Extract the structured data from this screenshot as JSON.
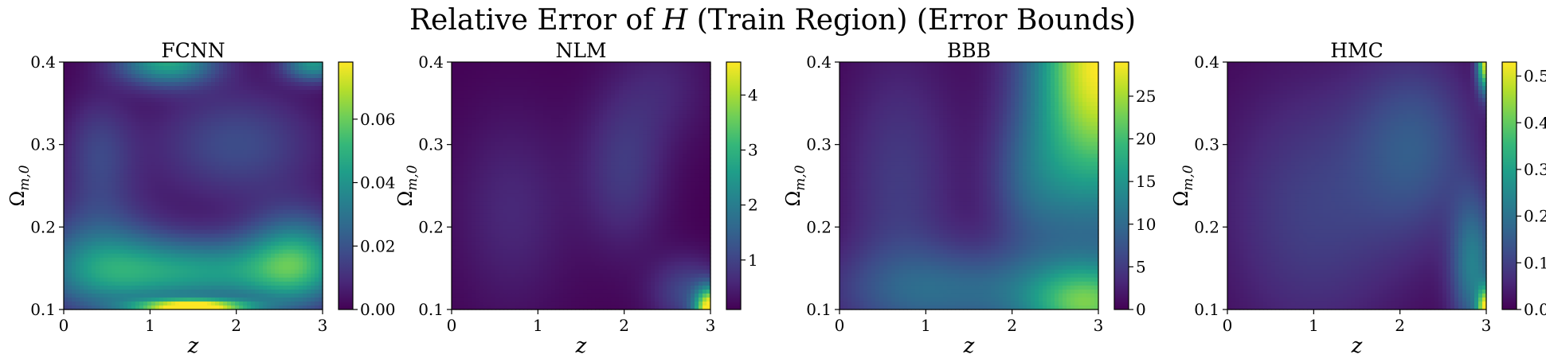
{
  "figure": {
    "title_prefix": "Relative Error of ",
    "title_symbol": "H",
    "title_suffix": " (Train Region) (Error Bounds)"
  },
  "chart_data": [
    {
      "type": "heatmap",
      "title": "FCNN",
      "xlabel": "z",
      "ylabel": "Ω",
      "ylabel_sub": "m,0",
      "xlim": [
        0,
        3
      ],
      "ylim": [
        0.1,
        0.4
      ],
      "xticks": [
        "0",
        "1",
        "2",
        "3"
      ],
      "yticks": [
        "0.1",
        "0.2",
        "0.3",
        "0.4"
      ],
      "colorbar": {
        "min": 0,
        "max": 0.078,
        "ticks": [
          "0.00",
          "0.02",
          "0.04",
          "0.06"
        ],
        "tick_values": [
          0,
          0.02,
          0.04,
          0.06
        ]
      },
      "colormap": "viridis",
      "features": [
        {
          "x": 1.5,
          "y": 0.103,
          "sx": 0.45,
          "sy": 0.006,
          "v": 0.078
        },
        {
          "x": 1.5,
          "y": 0.145,
          "sx": 1.0,
          "sy": 0.03,
          "v": 0.042
        },
        {
          "x": 2.7,
          "y": 0.16,
          "sx": 0.4,
          "sy": 0.04,
          "v": 0.04
        },
        {
          "x": 0.4,
          "y": 0.16,
          "sx": 0.5,
          "sy": 0.05,
          "v": 0.025
        },
        {
          "x": 1.2,
          "y": 0.4,
          "sx": 0.4,
          "sy": 0.02,
          "v": 0.045
        },
        {
          "x": 2.9,
          "y": 0.398,
          "sx": 0.25,
          "sy": 0.015,
          "v": 0.04
        },
        {
          "x": 2.0,
          "y": 0.3,
          "sx": 0.7,
          "sy": 0.05,
          "v": 0.018
        },
        {
          "x": 0.4,
          "y": 0.29,
          "sx": 0.3,
          "sy": 0.05,
          "v": 0.015
        }
      ]
    },
    {
      "type": "heatmap",
      "title": "NLM",
      "xlabel": "z",
      "ylabel": "Ω",
      "ylabel_sub": "m,0",
      "xlim": [
        0,
        3
      ],
      "ylim": [
        0.1,
        0.4
      ],
      "xticks": [
        "0",
        "1",
        "2",
        "3"
      ],
      "yticks": [
        "0.1",
        "0.2",
        "0.3",
        "0.4"
      ],
      "colorbar": {
        "min": 0.1,
        "max": 4.6,
        "ticks": [
          "1",
          "2",
          "3",
          "4"
        ],
        "tick_values": [
          1,
          2,
          3,
          4
        ]
      },
      "colormap": "viridis",
      "features": [
        {
          "x": 3.0,
          "y": 0.1,
          "sx": 0.12,
          "sy": 0.018,
          "v": 4.6
        },
        {
          "x": 2.75,
          "y": 0.12,
          "sx": 0.3,
          "sy": 0.03,
          "v": 1.1
        },
        {
          "x": 2.0,
          "y": 0.27,
          "sx": 0.35,
          "sy": 0.07,
          "v": 0.85
        },
        {
          "x": 0.7,
          "y": 0.22,
          "sx": 0.5,
          "sy": 0.09,
          "v": 0.6
        },
        {
          "x": 2.5,
          "y": 0.37,
          "sx": 0.4,
          "sy": 0.05,
          "v": 0.5
        }
      ]
    },
    {
      "type": "heatmap",
      "title": "BBB",
      "xlabel": "z",
      "ylabel": "Ω",
      "ylabel_sub": "m,0",
      "xlim": [
        0,
        3
      ],
      "ylim": [
        0.1,
        0.4
      ],
      "xticks": [
        "0",
        "1",
        "2",
        "3"
      ],
      "yticks": [
        "0.1",
        "0.2",
        "0.3",
        "0.4"
      ],
      "colorbar": {
        "min": 0,
        "max": 29,
        "ticks": [
          "0",
          "5",
          "10",
          "15",
          "20",
          "25"
        ],
        "tick_values": [
          0,
          5,
          10,
          15,
          20,
          25
        ]
      },
      "colormap": "viridis",
      "features": [
        {
          "x": 3.0,
          "y": 0.4,
          "sx": 0.55,
          "sy": 0.13,
          "v": 29
        },
        {
          "x": 2.9,
          "y": 0.105,
          "sx": 0.5,
          "sy": 0.035,
          "v": 17
        },
        {
          "x": 1.5,
          "y": 0.12,
          "sx": 1.1,
          "sy": 0.04,
          "v": 9
        },
        {
          "x": 0.7,
          "y": 0.25,
          "sx": 0.5,
          "sy": 0.12,
          "v": 5
        },
        {
          "x": 2.2,
          "y": 0.25,
          "sx": 0.35,
          "sy": 0.06,
          "v": 6
        }
      ]
    },
    {
      "type": "heatmap",
      "title": "HMC",
      "xlabel": "z",
      "ylabel": "Ω",
      "ylabel_sub": "m,0",
      "xlim": [
        0,
        3
      ],
      "ylim": [
        0.1,
        0.4
      ],
      "xticks": [
        "0",
        "1",
        "2",
        "3"
      ],
      "yticks": [
        "0.1",
        "0.2",
        "0.3",
        "0.4"
      ],
      "colorbar": {
        "min": 0,
        "max": 0.53,
        "ticks": [
          "0.0",
          "0.1",
          "0.2",
          "0.3",
          "0.4",
          "0.5"
        ],
        "tick_values": [
          0,
          0.1,
          0.2,
          0.3,
          0.4,
          0.5
        ]
      },
      "colormap": "viridis",
      "features": [
        {
          "x": 3.0,
          "y": 0.4,
          "sx": 0.07,
          "sy": 0.025,
          "v": 0.5
        },
        {
          "x": 3.0,
          "y": 0.1,
          "sx": 0.07,
          "sy": 0.018,
          "v": 0.45
        },
        {
          "x": 2.85,
          "y": 0.15,
          "sx": 0.18,
          "sy": 0.06,
          "v": 0.22
        },
        {
          "x": 2.2,
          "y": 0.3,
          "sx": 0.5,
          "sy": 0.08,
          "v": 0.13
        },
        {
          "x": 1.0,
          "y": 0.22,
          "sx": 0.8,
          "sy": 0.12,
          "v": 0.1
        }
      ]
    }
  ]
}
